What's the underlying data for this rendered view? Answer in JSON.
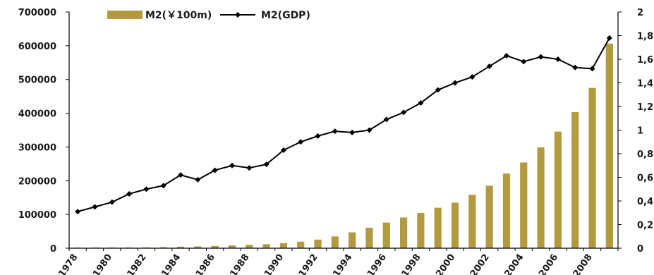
{
  "chart_data": {
    "type": "bar",
    "title": "",
    "xlabel": "",
    "x": [
      "1978",
      "1979",
      "1980",
      "1981",
      "1982",
      "1983",
      "1984",
      "1985",
      "1986",
      "1987",
      "1988",
      "1989",
      "1990",
      "1991",
      "1992",
      "1993",
      "1994",
      "1995",
      "1996",
      "1997",
      "1998",
      "1999",
      "2000",
      "2001",
      "2002",
      "2003",
      "2004",
      "2005",
      "2006",
      "2007",
      "2008",
      "2009"
    ],
    "x_tick_labels": [
      "1978",
      "1980",
      "1982",
      "1984",
      "1986",
      "1988",
      "1990",
      "1992",
      "1994",
      "1996",
      "1998",
      "2000",
      "2002",
      "2004",
      "2006",
      "2008"
    ],
    "series": [
      {
        "name": "M2(￥100m)",
        "type": "bar",
        "axis": "left",
        "color": "#b39a3e",
        "values": [
          1159,
          1500,
          1843,
          2234,
          2590,
          3076,
          4440,
          5198,
          6721,
          8330,
          10099,
          11950,
          15293,
          19350,
          25402,
          34880,
          46923,
          60751,
          76095,
          90995,
          104499,
          119898,
          134610,
          158302,
          185007,
          221223,
          254107,
          298756,
          345578,
          403442,
          475167,
          606225
        ]
      },
      {
        "name": "M2(GDP)",
        "type": "line",
        "axis": "right",
        "color": "#000000",
        "marker": "diamond",
        "values": [
          0.31,
          0.35,
          0.39,
          0.46,
          0.5,
          0.53,
          0.62,
          0.58,
          0.66,
          0.7,
          0.68,
          0.71,
          0.83,
          0.9,
          0.95,
          0.99,
          0.98,
          1.0,
          1.09,
          1.15,
          1.23,
          1.34,
          1.4,
          1.45,
          1.54,
          1.63,
          1.58,
          1.62,
          1.6,
          1.53,
          1.52,
          1.78
        ]
      }
    ],
    "y_left": {
      "ylim": [
        0,
        700000
      ],
      "ticks": [
        "0",
        "100000",
        "200000",
        "300000",
        "400000",
        "500000",
        "600000",
        "700000"
      ]
    },
    "y_right": {
      "ylim": [
        0,
        2
      ],
      "ticks": [
        "0",
        "0,2",
        "0,4",
        "0,6",
        "0,8",
        "1",
        "1,2",
        "1,4",
        "1,6",
        "1,8",
        "2"
      ]
    },
    "legend": {
      "placement": "top-center"
    },
    "grid": false
  }
}
